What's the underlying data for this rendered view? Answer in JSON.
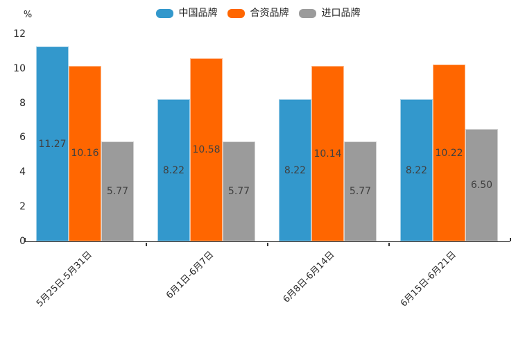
{
  "chart_data": {
    "type": "bar",
    "categories": [
      "5月25日-5月31日",
      "6月1日-6月7日",
      "6月8日-6月14日",
      "6月15日-6月21日"
    ],
    "series": [
      {
        "name": "中国品牌",
        "color": "#3398cc",
        "values": [
          11.27,
          8.22,
          8.22,
          8.22
        ]
      },
      {
        "name": "合资品牌",
        "color": "#ff6600",
        "values": [
          10.16,
          10.58,
          10.14,
          10.22
        ]
      },
      {
        "name": "进口品牌",
        "color": "#9b9b9b",
        "values": [
          5.77,
          5.77,
          5.77,
          6.5
        ]
      }
    ],
    "value_label_format": "2-decimals",
    "value_label_position": "inside-center",
    "title": "",
    "xlabel": "",
    "ylabel": "%",
    "ylim": [
      0,
      12
    ],
    "yticks": [
      0,
      2,
      4,
      6,
      8,
      10,
      12
    ],
    "grid": false,
    "legend_position": "top-center"
  },
  "colors": {
    "axis": "#333333",
    "tick_text": "#262626",
    "value_label_text": "#404040",
    "background": "#ffffff",
    "series_blue": "#3398cc",
    "series_orange": "#ff6600",
    "series_gray": "#9b9b9b"
  }
}
